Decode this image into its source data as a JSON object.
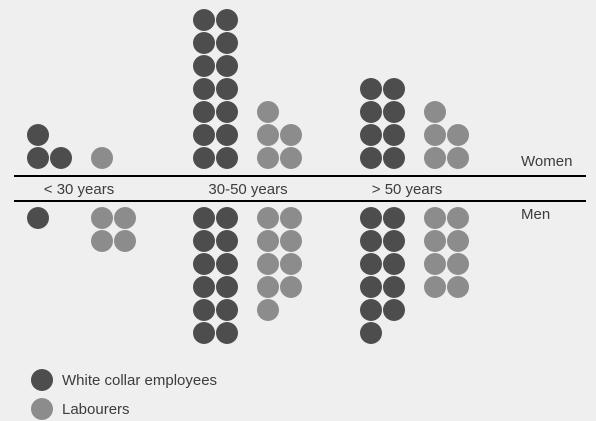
{
  "chart_data": {
    "type": "unit-dot-pictogram",
    "categories": [
      "< 30 years",
      "30-50 years",
      "> 50 years"
    ],
    "groups": [
      "Women",
      "Men"
    ],
    "series": [
      {
        "name": "White collar employees",
        "color": "#4d4d4d",
        "women": [
          3,
          14,
          8
        ],
        "men": [
          1,
          12,
          11
        ]
      },
      {
        "name": "Labourers",
        "color": "#8c8c8c",
        "women": [
          1,
          5,
          5
        ],
        "men": [
          4,
          9,
          8
        ]
      }
    ]
  },
  "labels": {
    "women": "Women",
    "men": "Men"
  },
  "legend": [
    {
      "label": "White collar employees",
      "color": "#4d4d4d"
    },
    {
      "label": "Labourers",
      "color": "#8c8c8c"
    }
  ]
}
